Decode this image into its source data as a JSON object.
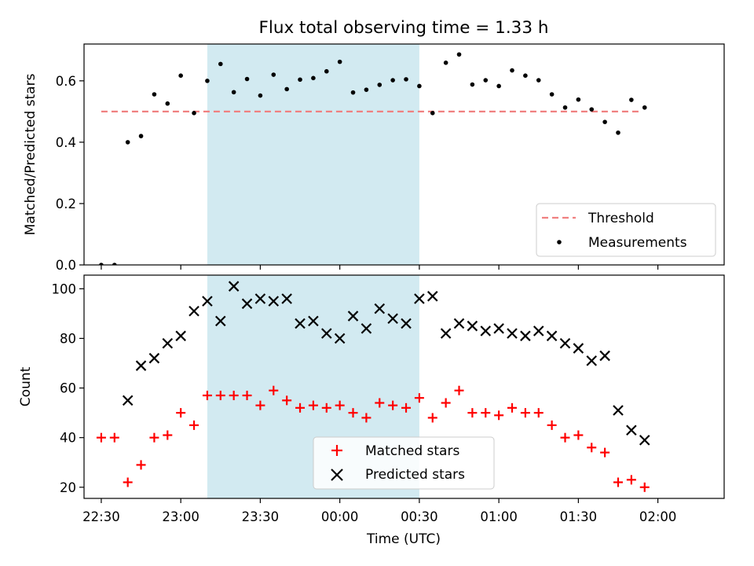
{
  "figure": {
    "title": "Flux total observing time = 1.33 h"
  },
  "chart_data": [
    {
      "type": "scatter",
      "ylabel": "Matched/Predicted stars",
      "ylim": [
        0,
        0.72
      ],
      "yticks": [
        0.0,
        0.2,
        0.4,
        0.6
      ],
      "ytick_labels": [
        "0.0",
        "0.2",
        "0.4",
        "0.6"
      ],
      "xlim": [
        -0.1083,
        3.9167
      ],
      "shaded_span": {
        "x0": 0.6667,
        "x1": 2.0,
        "color": "#add8e6"
      },
      "threshold": {
        "name": "Threshold",
        "y": 0.5,
        "x0": 0.0,
        "x1": 3.4,
        "color": "#f08080"
      },
      "series": [
        {
          "name": "Measurements",
          "marker": "dot",
          "color": "#000000",
          "x": [
            0.0,
            0.0833,
            0.1667,
            0.25,
            0.3333,
            0.4167,
            0.5,
            0.5833,
            0.6667,
            0.75,
            0.8333,
            0.9167,
            1.0,
            1.0833,
            1.1667,
            1.25,
            1.3333,
            1.4167,
            1.5,
            1.5833,
            1.6667,
            1.75,
            1.8333,
            1.9167,
            2.0,
            2.0833,
            2.1667,
            2.25,
            2.3333,
            2.4167,
            2.5,
            2.5833,
            2.6667,
            2.75,
            2.8333,
            2.9167,
            3.0,
            3.0833,
            3.1667,
            3.25,
            3.3333,
            3.4167
          ],
          "y": [
            0.0,
            0.0,
            0.4,
            0.42,
            0.556,
            0.526,
            0.617,
            0.495,
            0.6,
            0.655,
            0.563,
            0.606,
            0.552,
            0.62,
            0.573,
            0.604,
            0.609,
            0.631,
            0.662,
            0.562,
            0.571,
            0.587,
            0.602,
            0.605,
            0.583,
            0.495,
            0.659,
            0.686,
            0.588,
            0.602,
            0.583,
            0.634,
            0.617,
            0.602,
            0.556,
            0.513,
            0.539,
            0.507,
            0.466,
            0.431,
            0.538,
            0.513
          ]
        }
      ],
      "legend": {
        "position": "lower-right",
        "entries": [
          "Threshold",
          "Measurements"
        ]
      }
    },
    {
      "type": "scatter",
      "ylabel": "Count",
      "xlabel": "Time (UTC)",
      "ylim": [
        15.5,
        105.5
      ],
      "yticks": [
        20,
        40,
        60,
        80,
        100
      ],
      "ytick_labels": [
        "20",
        "40",
        "60",
        "80",
        "100"
      ],
      "xlim": [
        -0.1083,
        3.9167
      ],
      "xticks": [
        0.0,
        0.5,
        1.0,
        1.5,
        2.0,
        2.5,
        3.0,
        3.5
      ],
      "xtick_labels": [
        "22:30",
        "23:00",
        "23:30",
        "00:00",
        "00:30",
        "01:00",
        "01:30",
        "02:00"
      ],
      "shaded_span": {
        "x0": 0.6667,
        "x1": 2.0,
        "color": "#add8e6"
      },
      "series": [
        {
          "name": "Matched stars",
          "marker": "plus",
          "color": "#ff0000",
          "x": [
            0.0,
            0.0833,
            0.1667,
            0.25,
            0.3333,
            0.4167,
            0.5,
            0.5833,
            0.6667,
            0.75,
            0.8333,
            0.9167,
            1.0,
            1.0833,
            1.1667,
            1.25,
            1.3333,
            1.4167,
            1.5,
            1.5833,
            1.6667,
            1.75,
            1.8333,
            1.9167,
            2.0,
            2.0833,
            2.1667,
            2.25,
            2.3333,
            2.4167,
            2.5,
            2.5833,
            2.6667,
            2.75,
            2.8333,
            2.9167,
            3.0,
            3.0833,
            3.1667,
            3.25,
            3.3333,
            3.4167
          ],
          "y": [
            40,
            40,
            22,
            29,
            40,
            41,
            50,
            45,
            57,
            57,
            57,
            57,
            53,
            59,
            55,
            52,
            53,
            52,
            53,
            50,
            48,
            54,
            53,
            52,
            56,
            48,
            54,
            59,
            50,
            50,
            49,
            52,
            50,
            50,
            45,
            40,
            41,
            36,
            34,
            22,
            23,
            20
          ]
        },
        {
          "name": "Predicted stars",
          "marker": "x",
          "color": "#000000",
          "x": [
            0.1667,
            0.25,
            0.3333,
            0.4167,
            0.5,
            0.5833,
            0.6667,
            0.75,
            0.8333,
            0.9167,
            1.0,
            1.0833,
            1.1667,
            1.25,
            1.3333,
            1.4167,
            1.5,
            1.5833,
            1.6667,
            1.75,
            1.8333,
            1.9167,
            2.0,
            2.0833,
            2.1667,
            2.25,
            2.3333,
            2.4167,
            2.5,
            2.5833,
            2.6667,
            2.75,
            2.8333,
            2.9167,
            3.0,
            3.0833,
            3.1667,
            3.25,
            3.3333,
            3.4167
          ],
          "y": [
            55,
            69,
            72,
            78,
            81,
            91,
            95,
            87,
            101,
            94,
            96,
            95,
            96,
            86,
            87,
            82,
            80,
            89,
            84,
            92,
            88,
            86,
            96,
            97,
            82,
            86,
            85,
            83,
            84,
            82,
            81,
            83,
            81,
            78,
            76,
            71,
            73,
            51,
            43,
            39
          ]
        }
      ],
      "legend": {
        "position": "lower-center",
        "entries": [
          "Matched stars",
          "Predicted stars"
        ]
      }
    }
  ]
}
